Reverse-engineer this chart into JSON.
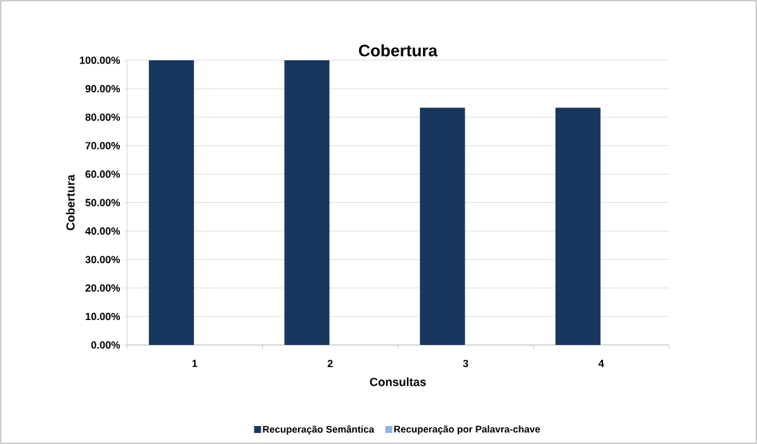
{
  "chart_data": {
    "type": "bar",
    "title": "Cobertura",
    "xlabel": "Consultas",
    "ylabel": "Cobertura",
    "categories": [
      "1",
      "2",
      "3",
      "4"
    ],
    "series": [
      {
        "name": "Recuperação Semântica",
        "color": "#17375e",
        "values": [
          100,
          100,
          83.33,
          83.33
        ]
      },
      {
        "name": "Recuperação por Palavra-chave",
        "color": "#8db4e2",
        "values": [
          0,
          0,
          0,
          0
        ]
      }
    ],
    "ylim": [
      0,
      100
    ],
    "yticks": [
      {
        "value": 0,
        "label": "0.00%"
      },
      {
        "value": 10,
        "label": "10.00%"
      },
      {
        "value": 20,
        "label": "20.00%"
      },
      {
        "value": 30,
        "label": "30.00%"
      },
      {
        "value": 40,
        "label": "40.00%"
      },
      {
        "value": 50,
        "label": "50.00%"
      },
      {
        "value": 60,
        "label": "60.00%"
      },
      {
        "value": 70,
        "label": "70.00%"
      },
      {
        "value": 80,
        "label": "80.00%"
      },
      {
        "value": 90,
        "label": "90.00%"
      },
      {
        "value": 100,
        "label": "100.00%"
      }
    ],
    "grid": "y",
    "legend": "bottom"
  }
}
